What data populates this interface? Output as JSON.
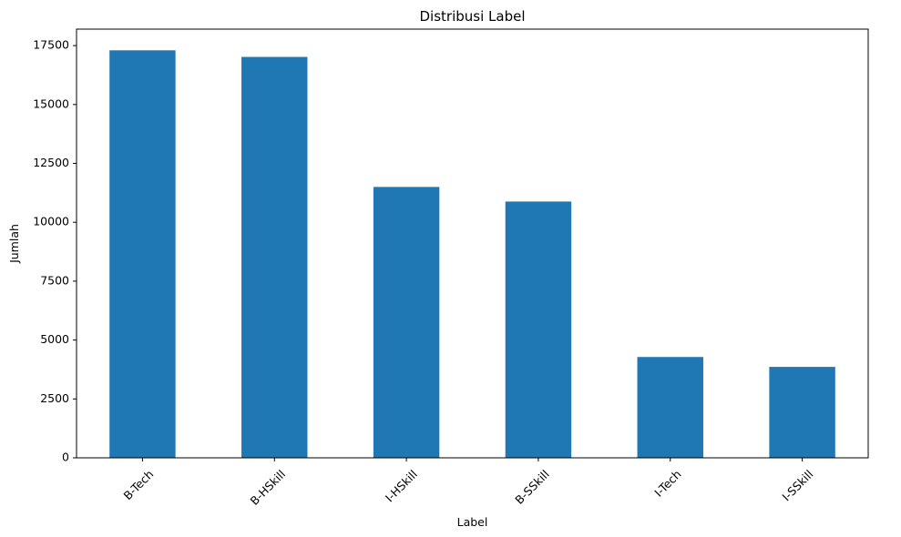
{
  "chart_data": {
    "type": "bar",
    "title": "Distribusi Label",
    "xlabel": "Label",
    "ylabel": "Jumlah",
    "categories": [
      "B-Tech",
      "B-HSkill",
      "I-HSkill",
      "B-SSkill",
      "I-Tech",
      "I-SSkill"
    ],
    "values": [
      17300,
      17020,
      11500,
      10880,
      4280,
      3860
    ],
    "ylim": [
      0,
      18200
    ],
    "yticks": [
      0,
      2500,
      5000,
      7500,
      10000,
      12500,
      15000,
      17500
    ],
    "ytick_labels": [
      "0",
      "2500",
      "5000",
      "7500",
      "10000",
      "12500",
      "15000",
      "17500"
    ],
    "grid": false,
    "legend": "none",
    "bar_color": "#1f77b4",
    "xtick_rotation": "45°"
  }
}
